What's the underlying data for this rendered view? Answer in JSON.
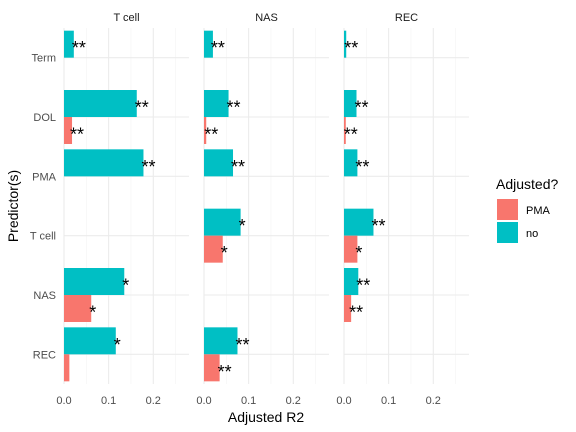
{
  "chart_data": {
    "type": "bar",
    "orientation": "horizontal",
    "grouped": true,
    "xlabel": "Adjusted R2",
    "ylabel": "Predictor(s)",
    "xlim": [
      0,
      0.28
    ],
    "x_ticks": [
      0.0,
      0.1,
      0.2
    ],
    "x_tick_labels": [
      "0.0",
      "0.1",
      "0.2"
    ],
    "categories": [
      "Term",
      "DOL",
      "PMA",
      "T cell",
      "NAS",
      "REC"
    ],
    "grid": true,
    "legend": {
      "title": "Adjusted?",
      "placement": "right",
      "entries": [
        {
          "label": "PMA",
          "color": "#F8766D"
        },
        {
          "label": "no",
          "color": "#00BFC4"
        }
      ]
    },
    "panels": [
      {
        "title": "T cell",
        "bars": [
          {
            "category": "Term",
            "series": "no",
            "value": 0.022,
            "label": "**"
          },
          {
            "category": "DOL",
            "series": "no",
            "value": 0.163,
            "label": "**"
          },
          {
            "category": "DOL",
            "series": "PMA",
            "value": 0.018,
            "label": "**"
          },
          {
            "category": "PMA",
            "series": "no",
            "value": 0.178,
            "label": "**"
          },
          {
            "category": "NAS",
            "series": "no",
            "value": 0.135,
            "label": "*"
          },
          {
            "category": "NAS",
            "series": "PMA",
            "value": 0.061,
            "label": "*"
          },
          {
            "category": "REC",
            "series": "no",
            "value": 0.116,
            "label": "*"
          },
          {
            "category": "REC",
            "series": "PMA",
            "value": 0.012,
            "label": ""
          }
        ]
      },
      {
        "title": "NAS",
        "bars": [
          {
            "category": "Term",
            "series": "no",
            "value": 0.02,
            "label": "**"
          },
          {
            "category": "DOL",
            "series": "no",
            "value": 0.055,
            "label": "**"
          },
          {
            "category": "DOL",
            "series": "PMA",
            "value": 0.005,
            "label": "**"
          },
          {
            "category": "PMA",
            "series": "no",
            "value": 0.065,
            "label": "**"
          },
          {
            "category": "T cell",
            "series": "no",
            "value": 0.082,
            "label": "*"
          },
          {
            "category": "T cell",
            "series": "PMA",
            "value": 0.042,
            "label": "*"
          },
          {
            "category": "REC",
            "series": "no",
            "value": 0.075,
            "label": "**"
          },
          {
            "category": "REC",
            "series": "PMA",
            "value": 0.035,
            "label": "**"
          }
        ]
      },
      {
        "title": "REC",
        "bars": [
          {
            "category": "Term",
            "series": "no",
            "value": 0.005,
            "label": "**"
          },
          {
            "category": "DOL",
            "series": "no",
            "value": 0.028,
            "label": "**"
          },
          {
            "category": "DOL",
            "series": "PMA",
            "value": 0.004,
            "label": "**"
          },
          {
            "category": "PMA",
            "series": "no",
            "value": 0.03,
            "label": "**"
          },
          {
            "category": "T cell",
            "series": "no",
            "value": 0.066,
            "label": "**"
          },
          {
            "category": "T cell",
            "series": "PMA",
            "value": 0.03,
            "label": "*"
          },
          {
            "category": "NAS",
            "series": "no",
            "value": 0.032,
            "label": "**"
          },
          {
            "category": "NAS",
            "series": "PMA",
            "value": 0.016,
            "label": "**"
          }
        ]
      }
    ]
  }
}
